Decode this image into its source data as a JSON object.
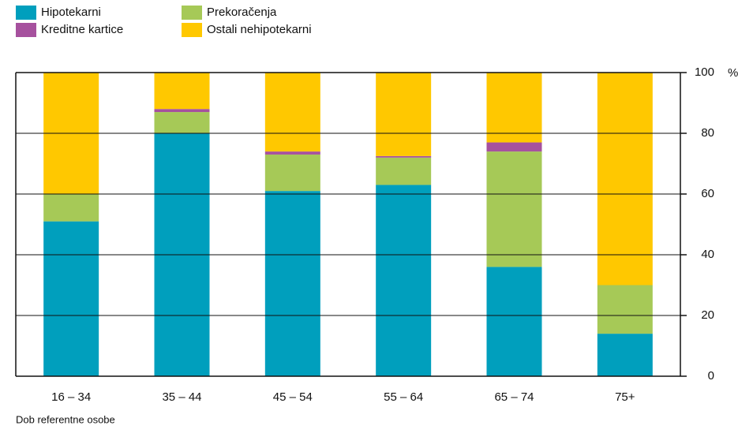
{
  "chart_data": {
    "type": "stacked_bar",
    "categories": [
      "16 – 34",
      "35 – 44",
      "45 – 54",
      "55 – 64",
      "65 – 74",
      "75+"
    ],
    "series": [
      {
        "name": "Hipotekarni",
        "color": "#009fbd",
        "values": [
          51,
          80,
          61,
          63,
          36,
          14
        ]
      },
      {
        "name": "Prekoračenja",
        "color": "#a6c957",
        "values": [
          9,
          7,
          12,
          9,
          38,
          16
        ]
      },
      {
        "name": "Kreditne kartice",
        "color": "#a6519e",
        "values": [
          0,
          1,
          1,
          0.5,
          3,
          0
        ]
      },
      {
        "name": "Ostali nehipotekarni",
        "color": "#ffc800",
        "values": [
          40,
          12,
          26,
          27.5,
          23,
          70
        ]
      }
    ],
    "x_label": "Dob referentne osobe",
    "y_unit": "%",
    "ylim": [
      0,
      100
    ],
    "yticks": [
      0,
      20,
      40,
      60,
      80,
      100
    ],
    "grid": true
  }
}
